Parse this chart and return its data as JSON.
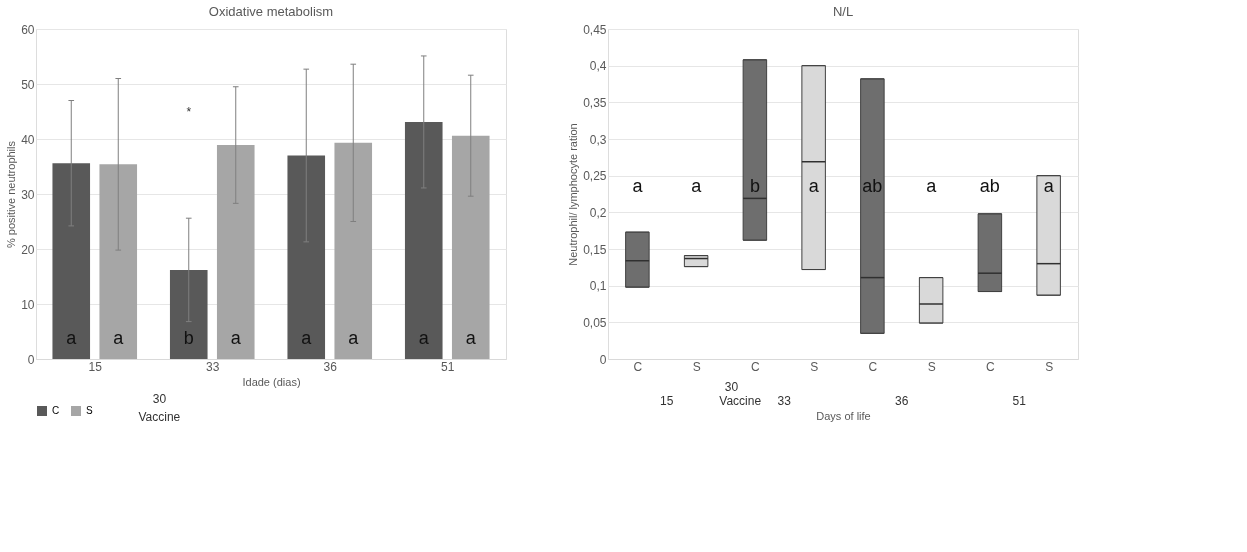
{
  "chart_data": [
    {
      "type": "bar",
      "title": "Oxidative metabolism",
      "ylabel": "% positive neutrophils",
      "xlabel": "Idade (dias)",
      "categories": [
        "15",
        "33",
        "36",
        "51"
      ],
      "series": [
        {
          "name": "C",
          "color": "#595959",
          "values": [
            35.6,
            16.2,
            37.0,
            43.1
          ],
          "errors": [
            11.4,
            9.4,
            15.7,
            12.0
          ],
          "value_labels": [
            "a",
            "b",
            "a",
            "a"
          ]
        },
        {
          "name": "S",
          "color": "#a6a6a6",
          "values": [
            35.4,
            38.9,
            39.3,
            40.6
          ],
          "errors": [
            15.6,
            10.6,
            14.3,
            11.0
          ],
          "value_labels": [
            "a",
            "a",
            "a",
            "a"
          ]
        }
      ],
      "ylim": [
        0,
        60
      ],
      "yticks": [
        0,
        10,
        20,
        30,
        40,
        50,
        60
      ],
      "grid": "y",
      "legend": "bottom",
      "annotations": [
        "*",
        "30",
        "Vaccine"
      ]
    },
    {
      "type": "box",
      "title": "N/L",
      "ylabel": "Neutrophil/ lymphocyte ration",
      "xlabel": "Days of life",
      "categories": [
        "C",
        "S",
        "C",
        "S",
        "C",
        "S",
        "C",
        "S"
      ],
      "boxes": [
        {
          "low": 0.098,
          "q1": 0.098,
          "median": 0.134,
          "q3": 0.173,
          "high": 0.173
        },
        {
          "low": 0.126,
          "q1": 0.126,
          "median": 0.137,
          "q3": 0.141,
          "high": 0.141
        },
        {
          "low": 0.162,
          "q1": 0.162,
          "median": 0.219,
          "q3": 0.408,
          "high": 0.408
        },
        {
          "low": 0.122,
          "q1": 0.122,
          "median": 0.269,
          "q3": 0.4,
          "high": 0.4
        },
        {
          "low": 0.035,
          "q1": 0.035,
          "median": 0.111,
          "q3": 0.382,
          "high": 0.382
        },
        {
          "low": 0.049,
          "q1": 0.049,
          "median": 0.075,
          "q3": 0.111,
          "high": 0.111
        },
        {
          "low": 0.092,
          "q1": 0.092,
          "median": 0.117,
          "q3": 0.198,
          "high": 0.198
        },
        {
          "low": 0.087,
          "q1": 0.087,
          "median": 0.13,
          "q3": 0.25,
          "high": 0.25
        }
      ],
      "colors": [
        "#6e6e6e",
        "#d9d9d9",
        "#6e6e6e",
        "#d9d9d9",
        "#6e6e6e",
        "#d9d9d9",
        "#6e6e6e",
        "#d9d9d9"
      ],
      "value_labels": [
        "a",
        "a",
        "b",
        "a",
        "ab",
        "a",
        "ab",
        "a"
      ],
      "ylim": [
        0,
        0.45
      ],
      "yticks": [
        0,
        {
          "value": 0.05,
          "label": "0,05"
        },
        {
          "value": 0.1,
          "label": "0,1"
        },
        {
          "value": 0.15,
          "label": "0,15"
        },
        {
          "value": 0.2,
          "label": "0,2"
        },
        {
          "value": 0.25,
          "label": "0,25"
        },
        {
          "value": 0.3,
          "label": "0,3"
        },
        {
          "value": 0.35,
          "label": "0,35"
        },
        {
          "value": 0.4,
          "label": "0,4"
        },
        {
          "value": 0.45,
          "label": "0,45"
        }
      ],
      "grid": "y",
      "annotations": [
        "15",
        "33",
        "36",
        "51",
        "30",
        "Vaccine"
      ]
    }
  ]
}
